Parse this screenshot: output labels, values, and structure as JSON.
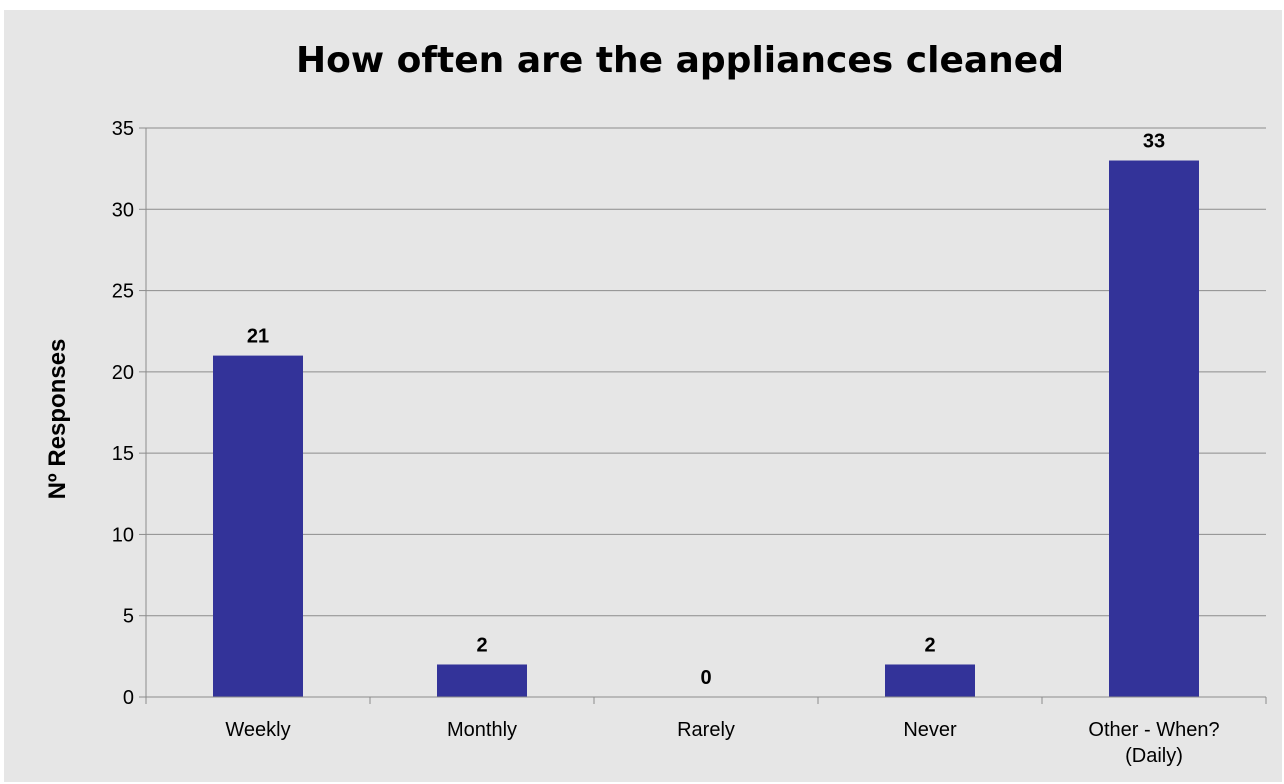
{
  "chart_data": {
    "type": "bar",
    "title": "How often are the appliances cleaned",
    "xlabel": "",
    "ylabel": "Nº Responses",
    "categories": [
      [
        "Weekly"
      ],
      [
        "Monthly"
      ],
      [
        "Rarely"
      ],
      [
        "Never"
      ],
      [
        "Other - When?",
        "(Daily)"
      ]
    ],
    "series": [
      {
        "values": [
          21,
          2,
          0,
          2,
          33
        ]
      }
    ],
    "ylim": [
      0,
      35
    ],
    "yticks": [
      0,
      5,
      10,
      15,
      20,
      25,
      30,
      35
    ],
    "grid": true,
    "legend": "none",
    "colors": {
      "bar": "#333399",
      "background": "#e6e6e6",
      "grid": "#8c8c8c",
      "axis": "#8c8c8c"
    }
  }
}
